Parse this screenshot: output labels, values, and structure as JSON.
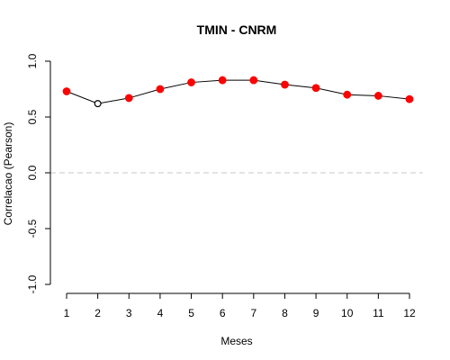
{
  "chart_data": {
    "type": "line",
    "title": "TMIN - CNRM",
    "xlabel": "Meses",
    "ylabel": "Correlacao (Pearson)",
    "x": [
      1,
      2,
      3,
      4,
      5,
      6,
      7,
      8,
      9,
      10,
      11,
      12
    ],
    "x_tick_labels": [
      "1",
      "2",
      "3",
      "4",
      "5",
      "6",
      "7",
      "8",
      "9",
      "10",
      "11",
      "12"
    ],
    "y_tick_labels": [
      "-1.0",
      "-0.5",
      "0.0",
      "0.5",
      "1.0"
    ],
    "y_ticks": [
      -1.0,
      -0.5,
      0.0,
      0.5,
      1.0
    ],
    "ylim": [
      -1.0,
      1.0
    ],
    "xlim": [
      1,
      12
    ],
    "series": [
      {
        "values": [
          0.73,
          0.62,
          0.67,
          0.75,
          0.81,
          0.83,
          0.83,
          0.79,
          0.76,
          0.7,
          0.69,
          0.66
        ],
        "significant": [
          true,
          false,
          true,
          true,
          true,
          true,
          true,
          true,
          true,
          true,
          true,
          true
        ]
      }
    ],
    "reference_line": 0.0,
    "grid": false,
    "colors": {
      "significant_point": "#ff0000",
      "nonsignificant_point": "#ffffff",
      "line": "#000000",
      "reference_line": "#c8c8c8"
    }
  }
}
